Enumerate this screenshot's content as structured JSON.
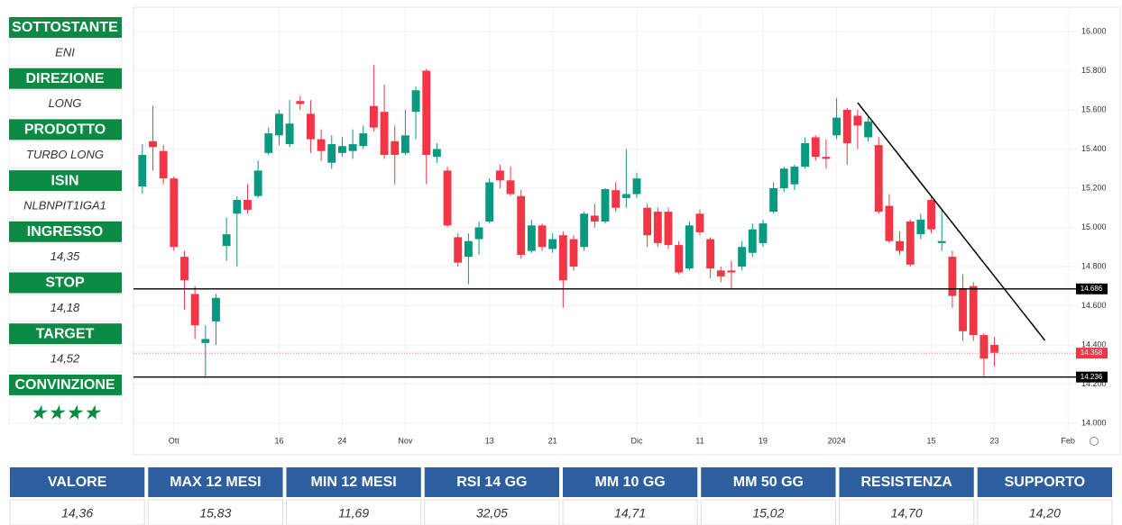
{
  "panel": [
    {
      "label": "SOTTOSTANTE",
      "value": "ENI"
    },
    {
      "label": "DIREZIONE",
      "value": "LONG"
    },
    {
      "label": "PRODOTTO",
      "value": "TURBO LONG"
    },
    {
      "label": "ISIN",
      "value": "NLBNPIT1IGA1"
    },
    {
      "label": "INGRESSO",
      "value": "14,35"
    },
    {
      "label": "STOP",
      "value": "14,18"
    },
    {
      "label": "TARGET",
      "value": "14,52"
    },
    {
      "label": "CONVINZIONE",
      "value": "★★★★"
    }
  ],
  "table": {
    "headers": [
      "VALORE",
      "MAX 12 MESI",
      "MIN 12 MESI",
      "RSI 14 GG",
      "MM 10 GG",
      "MM 50 GG",
      "RESISTENZA",
      "SUPPORTO"
    ],
    "values": [
      "14,36",
      "15,83",
      "11,69",
      "32,05",
      "14,71",
      "15,02",
      "14,70",
      "14,20"
    ]
  },
  "chart_data": {
    "type": "candlestick",
    "categories": [
      null,
      null,
      null,
      "Ott",
      null,
      null,
      null,
      null,
      null,
      null,
      null,
      null,
      null,
      "16",
      null,
      null,
      null,
      null,
      null,
      "24",
      null,
      null,
      null,
      null,
      null,
      "Nov",
      null,
      null,
      null,
      null,
      null,
      null,
      null,
      "13",
      null,
      null,
      null,
      null,
      null,
      "21",
      null,
      null,
      null,
      null,
      null,
      null,
      null,
      "Dic",
      null,
      null,
      null,
      null,
      null,
      "11",
      null,
      null,
      null,
      null,
      null,
      "19",
      null,
      null,
      null,
      null,
      null,
      null,
      "2024",
      null,
      null,
      null,
      null,
      null,
      null,
      null,
      null,
      "15",
      null,
      null,
      null,
      null,
      null,
      "23",
      null,
      null,
      null,
      null,
      null,
      null,
      "Feb"
    ],
    "open": [
      15.209,
      15.44,
      15.39,
      15.25,
      14.85,
      14.66,
      14.41,
      14.52,
      14.905,
      15.07,
      15.14,
      15.16,
      15.38,
      15.47,
      15.425,
      15.645,
      15.58,
      15.45,
      15.33,
      15.38,
      15.39,
      15.415,
      15.62,
      15.59,
      15.44,
      15.38,
      15.59,
      15.8,
      15.36,
      15.29,
      14.95,
      14.85,
      14.94,
      15.03,
      15.29,
      15.24,
      15.16,
      14.88,
      15.01,
      14.89,
      14.96,
      14.94,
      14.9,
      15.06,
      15.03,
      15.19,
      15.15,
      15.17,
      15.1,
      15.08,
      15.08,
      14.91,
      14.79,
      15.07,
      14.94,
      14.78,
      14.78,
      14.8,
      14.87,
      14.92,
      15.08,
      15.2,
      15.22,
      15.31,
      15.46,
      15.36,
      15.47,
      15.6,
      15.57,
      15.46,
      15.42,
      15.11,
      14.93,
      15.03,
      14.965,
      15.14,
      14.92,
      14.85,
      14.69,
      14.7,
      14.45,
      14.4,
      null,
      null,
      null,
      null,
      null,
      null,
      null
    ],
    "high": [
      15.425,
      15.62,
      15.42,
      15.26,
      14.88,
      14.7,
      14.5,
      14.66,
      15.05,
      15.16,
      15.22,
      15.34,
      15.51,
      15.6,
      15.65,
      15.67,
      15.65,
      15.5,
      15.47,
      15.46,
      15.5,
      15.52,
      15.83,
      15.73,
      15.52,
      15.6,
      15.72,
      15.81,
      15.43,
      15.31,
      14.97,
      14.97,
      15.03,
      15.25,
      15.32,
      15.31,
      15.19,
      15.04,
      15.02,
      14.97,
      14.98,
      14.96,
      15.08,
      15.12,
      15.2,
      15.23,
      15.4,
      15.28,
      15.12,
      15.1,
      15.1,
      14.93,
      15.03,
      15.09,
      14.95,
      14.8,
      14.83,
      14.93,
      15.02,
      15.04,
      15.23,
      15.31,
      15.32,
      15.46,
      15.47,
      15.45,
      15.66,
      15.61,
      15.6,
      15.57,
      15.46,
      15.17,
      14.98,
      15.04,
      15.07,
      15.16,
      15.09,
      14.88,
      14.76,
      14.72,
      14.46,
      14.44,
      null,
      null,
      null,
      null,
      null,
      null,
      null
    ],
    "low": [
      15.172,
      15.29,
      15.22,
      14.88,
      14.58,
      14.43,
      14.23,
      14.4,
      14.83,
      14.8,
      15.07,
      15.15,
      15.37,
      15.42,
      15.41,
      15.6,
      15.38,
      15.34,
      15.3,
      15.36,
      15.35,
      15.4,
      15.49,
      15.35,
      15.22,
      15.37,
      15.45,
      15.22,
      15.33,
      15.0,
      14.8,
      14.71,
      14.86,
      15.02,
      15.2,
      15.16,
      14.84,
      14.87,
      14.88,
      14.87,
      14.59,
      14.78,
      14.88,
      15.0,
      15.02,
      15.08,
      15.1,
      15.15,
      14.9,
      14.9,
      14.89,
      14.76,
      14.78,
      14.96,
      14.74,
      14.72,
      14.69,
      14.78,
      14.85,
      14.9,
      15.07,
      15.18,
      15.19,
      15.3,
      15.34,
      15.3,
      15.45,
      15.32,
      15.4,
      15.44,
      15.07,
      14.92,
      14.86,
      14.8,
      14.94,
      14.97,
      14.88,
      14.59,
      14.42,
      14.42,
      14.23,
      14.29,
      null,
      null,
      null,
      null,
      null,
      null,
      null
    ],
    "close": [
      15.37,
      15.41,
      15.25,
      14.9,
      14.73,
      14.5,
      14.43,
      14.64,
      14.965,
      15.14,
      15.09,
      15.29,
      15.48,
      15.58,
      15.53,
      15.63,
      15.45,
      15.39,
      15.425,
      15.415,
      15.425,
      15.48,
      15.51,
      15.37,
      15.37,
      15.47,
      15.7,
      15.37,
      15.4,
      15.01,
      14.82,
      14.93,
      15.0,
      15.23,
      15.24,
      15.17,
      14.86,
      15.01,
      14.9,
      14.94,
      14.73,
      14.8,
      15.07,
      15.03,
      15.195,
      15.1,
      15.17,
      15.25,
      14.96,
      14.92,
      14.91,
      14.77,
      15.01,
      14.975,
      14.79,
      14.75,
      14.77,
      14.9,
      14.99,
      15.02,
      15.2,
      15.3,
      15.31,
      15.43,
      15.36,
      15.35,
      15.56,
      15.43,
      15.52,
      15.54,
      15.08,
      14.93,
      14.88,
      14.81,
      15.04,
      14.99,
      14.93,
      14.65,
      14.47,
      14.45,
      14.33,
      14.36,
      null,
      null,
      null,
      null,
      null,
      null,
      null
    ],
    "up_color": "#089981",
    "down_color": "#f23645",
    "ylim": [
      13.954,
      16.115
    ],
    "yticks": [
      {
        "value": 14.0,
        "label": "14.000"
      },
      {
        "value": 14.2,
        "label": "14.200"
      },
      {
        "value": 14.4,
        "label": "14.400"
      },
      {
        "value": 14.6,
        "label": "14.600"
      },
      {
        "value": 14.8,
        "label": "14.800"
      },
      {
        "value": 15.0,
        "label": "15.000"
      },
      {
        "value": 15.2,
        "label": "15.200"
      },
      {
        "value": 15.4,
        "label": "15.400"
      },
      {
        "value": 15.6,
        "label": "15.600"
      },
      {
        "value": 15.8,
        "label": "15.800"
      },
      {
        "value": 16.0,
        "label": "16.000"
      }
    ],
    "grid": true,
    "hlines": [
      {
        "value": 14.686,
        "color": "#000000",
        "dash": "solid"
      },
      {
        "value": 14.236,
        "color": "#000000",
        "dash": "solid"
      },
      {
        "value": 14.358,
        "color": "#f23645",
        "dash": "dotted"
      }
    ],
    "trendline": {
      "x": [
        68,
        85.8
      ],
      "y": [
        15.637,
        14.423
      ],
      "color": "#000000"
    }
  }
}
